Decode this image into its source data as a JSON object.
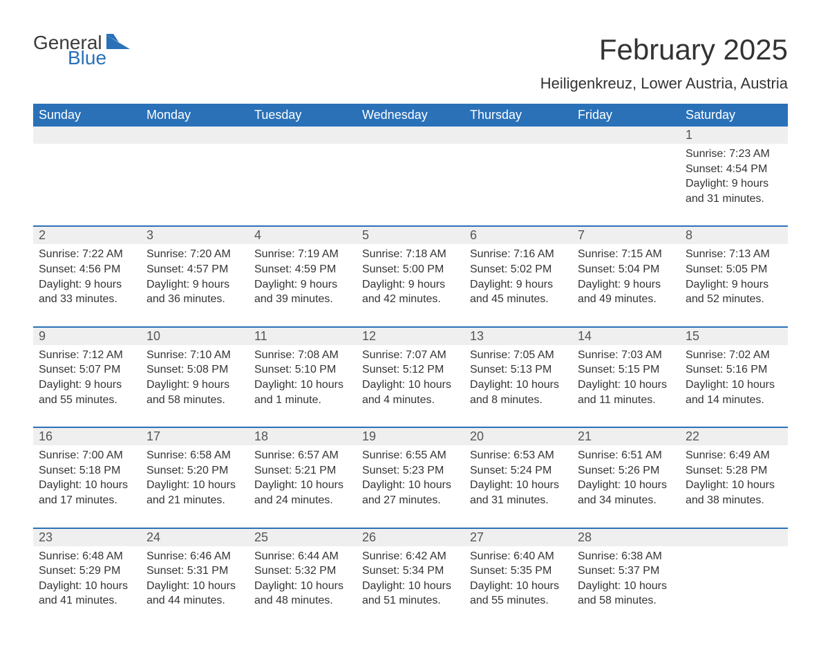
{
  "brand": {
    "word1": "General",
    "word2": "Blue"
  },
  "title": "February 2025",
  "location": "Heiligenkreuz, Lower Austria, Austria",
  "colors": {
    "header_bg": "#2a71b8",
    "header_text": "#ffffff",
    "daynum_bg": "#efefef",
    "accent_rule": "#2a71b8",
    "body_bg": "#ffffff",
    "text": "#333333"
  },
  "layout": {
    "columns": 7,
    "rows": 5,
    "first_day_column_index": 6,
    "title_fontsize": 42,
    "location_fontsize": 22,
    "dow_fontsize": 18,
    "daynum_fontsize": 18,
    "info_fontsize": 16
  },
  "days_of_week": [
    "Sunday",
    "Monday",
    "Tuesday",
    "Wednesday",
    "Thursday",
    "Friday",
    "Saturday"
  ],
  "days": [
    {
      "n": 1,
      "sunrise": "7:23 AM",
      "sunset": "4:54 PM",
      "daylight": "9 hours and 31 minutes."
    },
    {
      "n": 2,
      "sunrise": "7:22 AM",
      "sunset": "4:56 PM",
      "daylight": "9 hours and 33 minutes."
    },
    {
      "n": 3,
      "sunrise": "7:20 AM",
      "sunset": "4:57 PM",
      "daylight": "9 hours and 36 minutes."
    },
    {
      "n": 4,
      "sunrise": "7:19 AM",
      "sunset": "4:59 PM",
      "daylight": "9 hours and 39 minutes."
    },
    {
      "n": 5,
      "sunrise": "7:18 AM",
      "sunset": "5:00 PM",
      "daylight": "9 hours and 42 minutes."
    },
    {
      "n": 6,
      "sunrise": "7:16 AM",
      "sunset": "5:02 PM",
      "daylight": "9 hours and 45 minutes."
    },
    {
      "n": 7,
      "sunrise": "7:15 AM",
      "sunset": "5:04 PM",
      "daylight": "9 hours and 49 minutes."
    },
    {
      "n": 8,
      "sunrise": "7:13 AM",
      "sunset": "5:05 PM",
      "daylight": "9 hours and 52 minutes."
    },
    {
      "n": 9,
      "sunrise": "7:12 AM",
      "sunset": "5:07 PM",
      "daylight": "9 hours and 55 minutes."
    },
    {
      "n": 10,
      "sunrise": "7:10 AM",
      "sunset": "5:08 PM",
      "daylight": "9 hours and 58 minutes."
    },
    {
      "n": 11,
      "sunrise": "7:08 AM",
      "sunset": "5:10 PM",
      "daylight": "10 hours and 1 minute."
    },
    {
      "n": 12,
      "sunrise": "7:07 AM",
      "sunset": "5:12 PM",
      "daylight": "10 hours and 4 minutes."
    },
    {
      "n": 13,
      "sunrise": "7:05 AM",
      "sunset": "5:13 PM",
      "daylight": "10 hours and 8 minutes."
    },
    {
      "n": 14,
      "sunrise": "7:03 AM",
      "sunset": "5:15 PM",
      "daylight": "10 hours and 11 minutes."
    },
    {
      "n": 15,
      "sunrise": "7:02 AM",
      "sunset": "5:16 PM",
      "daylight": "10 hours and 14 minutes."
    },
    {
      "n": 16,
      "sunrise": "7:00 AM",
      "sunset": "5:18 PM",
      "daylight": "10 hours and 17 minutes."
    },
    {
      "n": 17,
      "sunrise": "6:58 AM",
      "sunset": "5:20 PM",
      "daylight": "10 hours and 21 minutes."
    },
    {
      "n": 18,
      "sunrise": "6:57 AM",
      "sunset": "5:21 PM",
      "daylight": "10 hours and 24 minutes."
    },
    {
      "n": 19,
      "sunrise": "6:55 AM",
      "sunset": "5:23 PM",
      "daylight": "10 hours and 27 minutes."
    },
    {
      "n": 20,
      "sunrise": "6:53 AM",
      "sunset": "5:24 PM",
      "daylight": "10 hours and 31 minutes."
    },
    {
      "n": 21,
      "sunrise": "6:51 AM",
      "sunset": "5:26 PM",
      "daylight": "10 hours and 34 minutes."
    },
    {
      "n": 22,
      "sunrise": "6:49 AM",
      "sunset": "5:28 PM",
      "daylight": "10 hours and 38 minutes."
    },
    {
      "n": 23,
      "sunrise": "6:48 AM",
      "sunset": "5:29 PM",
      "daylight": "10 hours and 41 minutes."
    },
    {
      "n": 24,
      "sunrise": "6:46 AM",
      "sunset": "5:31 PM",
      "daylight": "10 hours and 44 minutes."
    },
    {
      "n": 25,
      "sunrise": "6:44 AM",
      "sunset": "5:32 PM",
      "daylight": "10 hours and 48 minutes."
    },
    {
      "n": 26,
      "sunrise": "6:42 AM",
      "sunset": "5:34 PM",
      "daylight": "10 hours and 51 minutes."
    },
    {
      "n": 27,
      "sunrise": "6:40 AM",
      "sunset": "5:35 PM",
      "daylight": "10 hours and 55 minutes."
    },
    {
      "n": 28,
      "sunrise": "6:38 AM",
      "sunset": "5:37 PM",
      "daylight": "10 hours and 58 minutes."
    }
  ],
  "labels": {
    "sunrise": "Sunrise: ",
    "sunset": "Sunset: ",
    "daylight": "Daylight: "
  }
}
